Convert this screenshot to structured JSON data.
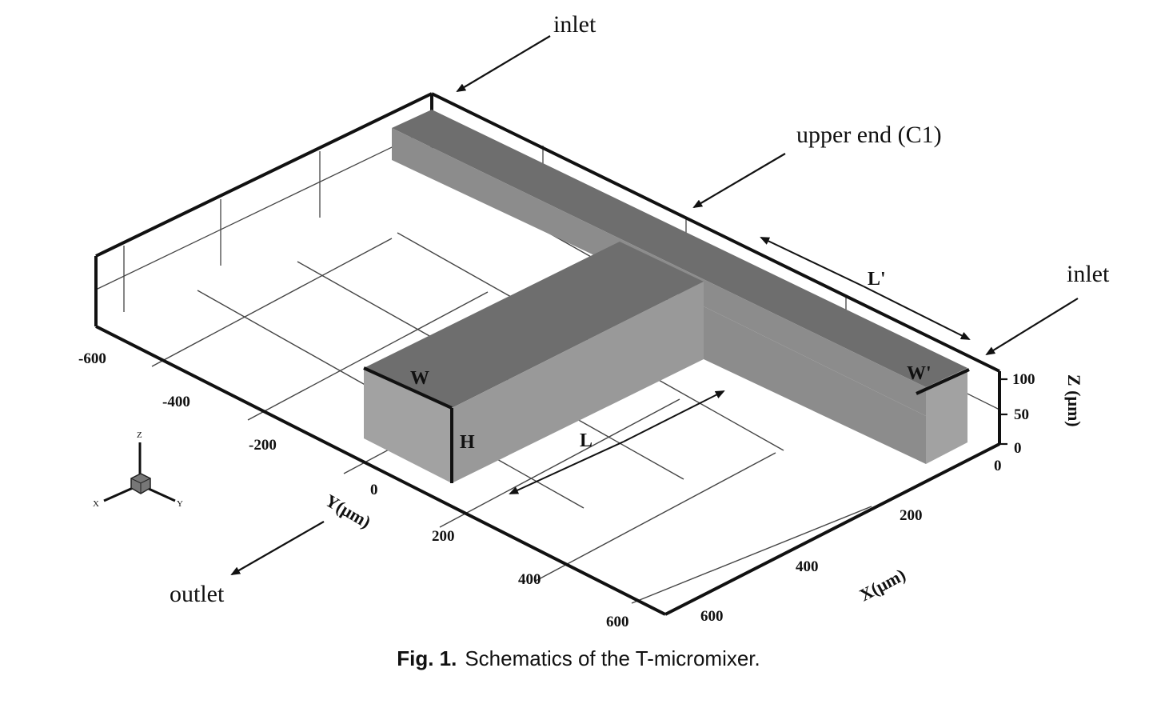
{
  "labels": {
    "inlet_top": "inlet",
    "inlet_right": "inlet",
    "upper_end": "upper end (C1)",
    "outlet": "outlet"
  },
  "dimensions": {
    "W": "W",
    "W_prime": "W'",
    "H": "H",
    "L": "L",
    "L_prime": "L'"
  },
  "axes": {
    "y_label": "Y(μm)",
    "x_label": "X(μm)",
    "z_label": "Z (μm)",
    "y_ticks": [
      "-600",
      "-400",
      "-200",
      "0",
      "200"
    ],
    "x_ticks": [
      "600",
      "400",
      "200",
      "0"
    ],
    "x_tick_y_edge": "600",
    "y_tick_x_edge": "400",
    "z_ticks": [
      "100",
      "50",
      "0"
    ]
  },
  "triad": {
    "x": "X",
    "y": "Y",
    "z": "Z"
  },
  "caption": {
    "number": "Fig. 1.",
    "text": "Schematics of the T-micromixer."
  },
  "colors": {
    "channel_top": "#6e6e6e",
    "channel_front": "#8c8c8c",
    "channel_side": "#a2a2a2"
  }
}
